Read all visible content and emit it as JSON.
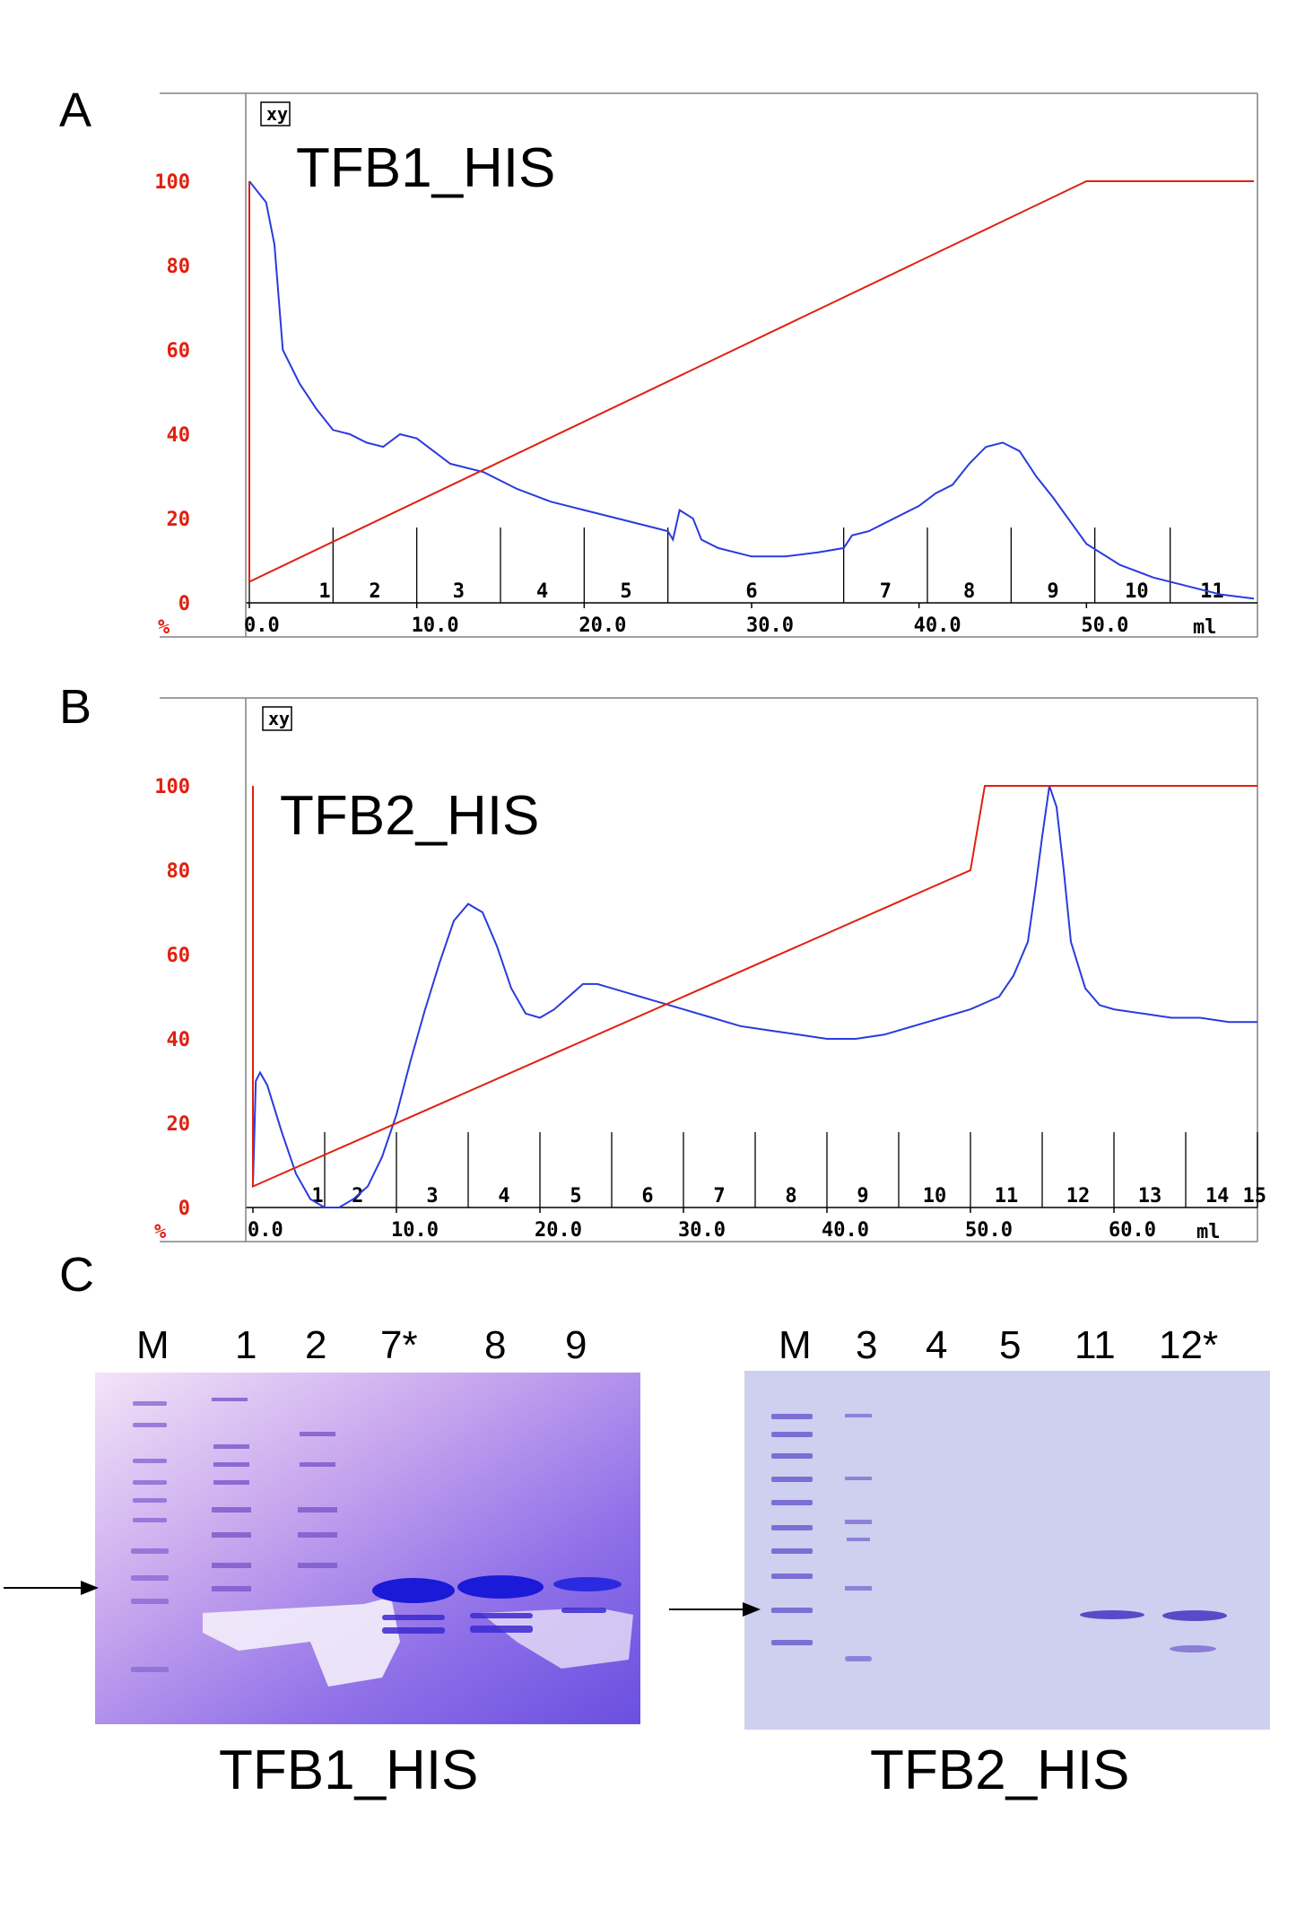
{
  "panels": {
    "a": {
      "letter": "A"
    },
    "b": {
      "letter": "B"
    },
    "c": {
      "letter": "C"
    }
  },
  "chart_data": [
    {
      "type": "line",
      "title": "TFB1_HIS",
      "xy_box": "xy",
      "y_unit": "%",
      "x_unit": "ml",
      "xlim": [
        0,
        60
      ],
      "ylim": [
        0,
        100
      ],
      "yticks": [
        0,
        20,
        40,
        60,
        80,
        100
      ],
      "xticks": [
        "0.0",
        "10.0",
        "20.0",
        "30.0",
        "40.0",
        "50.0"
      ],
      "xtick_values": [
        0,
        10,
        20,
        30,
        40,
        50
      ],
      "fraction_boundaries": [
        0,
        5,
        10,
        15,
        20,
        25,
        35.5,
        40.5,
        45.5,
        50.5,
        55
      ],
      "fraction_labels": [
        "1",
        "2",
        "3",
        "4",
        "5",
        "6",
        "7",
        "8",
        "9",
        "10",
        "11"
      ],
      "fraction_label_x": [
        4.5,
        7.5,
        12.5,
        17.5,
        22.5,
        30,
        38,
        43,
        48,
        53,
        57.5
      ],
      "series": [
        {
          "color": "#2b3bdc",
          "x": [
            0,
            0.6,
            1,
            1.5,
            2,
            3,
            4,
            5,
            6,
            7,
            8,
            9,
            10,
            11,
            12,
            14,
            16,
            18,
            20,
            22,
            24,
            25,
            25.3,
            25.7,
            26.5,
            27,
            28,
            30,
            32,
            34,
            35.5,
            36,
            37,
            38,
            40,
            41,
            42,
            43,
            44,
            45,
            46,
            47,
            48,
            50,
            52,
            54,
            56,
            58,
            60
          ],
          "y": [
            100,
            97,
            95,
            85,
            60,
            52,
            46,
            41,
            40,
            38,
            37,
            40,
            39,
            36,
            33,
            31,
            27,
            24,
            22,
            20,
            18,
            17,
            15,
            22,
            20,
            15,
            13,
            11,
            11,
            12,
            13,
            16,
            17,
            19,
            23,
            26,
            28,
            33,
            37,
            38,
            36,
            30,
            25,
            14,
            9,
            6,
            4,
            2,
            1
          ]
        },
        {
          "color": "#e02010",
          "x": [
            0,
            0,
            0,
            50,
            60
          ],
          "y": [
            5,
            100,
            5,
            100,
            100
          ]
        }
      ]
    },
    {
      "type": "line",
      "title": "TFB2_HIS",
      "xy_box": "xy",
      "y_unit": "%",
      "x_unit": "ml",
      "xlim": [
        0,
        70
      ],
      "ylim": [
        0,
        100
      ],
      "yticks": [
        0,
        20,
        40,
        60,
        80,
        100
      ],
      "xticks": [
        "0.0",
        "10.0",
        "20.0",
        "30.0",
        "40.0",
        "50.0",
        "60.0"
      ],
      "xtick_values": [
        0,
        10,
        20,
        30,
        40,
        50,
        60
      ],
      "fraction_boundaries": [
        5,
        10,
        15,
        20,
        25,
        30,
        35,
        40,
        45,
        50,
        55,
        60,
        65,
        70
      ],
      "fraction_labels": [
        "1",
        "2",
        "3",
        "4",
        "5",
        "6",
        "7",
        "8",
        "9",
        "10",
        "11",
        "12",
        "13",
        "14",
        "15"
      ],
      "fraction_label_x": [
        4.5,
        7.3,
        12.5,
        17.5,
        22.5,
        27.5,
        32.5,
        37.5,
        42.5,
        47.5,
        52.5,
        57.5,
        62.5,
        67.2,
        69.8
      ],
      "series": [
        {
          "color": "#2b3bdc",
          "x": [
            0,
            0.2,
            0.5,
            1,
            2,
            3,
            4,
            5,
            6,
            7,
            8,
            9,
            10,
            11,
            12,
            13,
            14,
            15,
            16,
            17,
            18,
            19,
            20,
            21,
            22,
            23,
            24,
            25,
            26,
            27,
            28,
            30,
            32,
            34,
            36,
            38,
            40,
            42,
            44,
            46,
            48,
            50,
            52,
            53,
            54,
            54.5,
            55,
            55.5,
            56,
            56.5,
            57,
            58,
            59,
            60,
            62,
            64,
            66,
            68,
            70
          ],
          "y": [
            5,
            30,
            32,
            29,
            18,
            8,
            2,
            0,
            0,
            2,
            5,
            12,
            22,
            35,
            47,
            58,
            68,
            72,
            70,
            62,
            52,
            46,
            45,
            47,
            50,
            53,
            53,
            52,
            51,
            50,
            49,
            47,
            45,
            43,
            42,
            41,
            40,
            40,
            41,
            43,
            45,
            47,
            50,
            55,
            63,
            75,
            88,
            100,
            95,
            80,
            63,
            52,
            48,
            47,
            46,
            45,
            45,
            44,
            44
          ]
        },
        {
          "color": "#e02010",
          "x": [
            0,
            0,
            0,
            50,
            51,
            70
          ],
          "y": [
            5,
            100,
            5,
            80,
            100,
            100
          ]
        }
      ]
    }
  ],
  "gels": [
    {
      "title": "TFB1_HIS",
      "lanes": [
        "M",
        "1",
        "2",
        "7*",
        "8",
        "9"
      ]
    },
    {
      "title": "TFB2_HIS",
      "lanes": [
        "M",
        "3",
        "4",
        "5",
        "11",
        "12*"
      ]
    }
  ]
}
